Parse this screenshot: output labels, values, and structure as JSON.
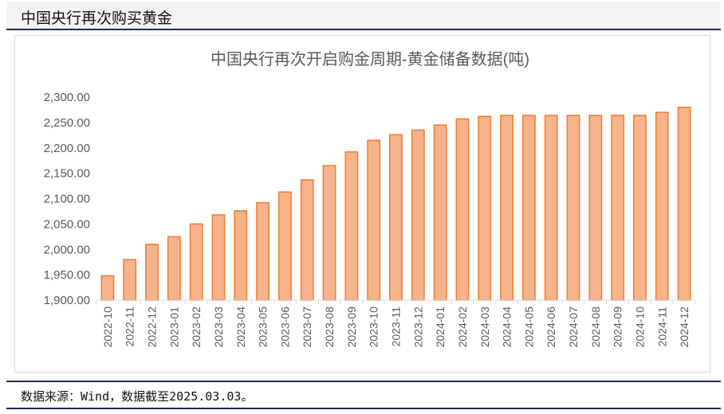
{
  "header": {
    "title": "中国央行再次购买黄金"
  },
  "footer": {
    "source": "数据来源：Wind，数据截至2025.03.03。"
  },
  "colors": {
    "bar_fill": "#f7b38a",
    "bar_stroke": "#ed7d31",
    "frame": "#1f2a5a"
  },
  "chart_data": {
    "type": "bar",
    "title": "中国央行再次开启购金周期-黄金储备数据(吨)",
    "xlabel": "",
    "ylabel": "",
    "ylim": [
      1900,
      2300
    ],
    "yticks": [
      "1,900.00",
      "1,950.00",
      "2,000.00",
      "2,050.00",
      "2,100.00",
      "2,150.00",
      "2,200.00",
      "2,250.00",
      "2,300.00"
    ],
    "grid": false,
    "categories": [
      "2022-10",
      "2022-11",
      "2022-12",
      "2023-01",
      "2023-02",
      "2023-03",
      "2023-04",
      "2023-05",
      "2023-06",
      "2023-07",
      "2023-08",
      "2023-09",
      "2023-10",
      "2023-11",
      "2023-12",
      "2024-01",
      "2024-02",
      "2024-03",
      "2024-04",
      "2024-05",
      "2024-06",
      "2024-07",
      "2024-08",
      "2024-09",
      "2024-10",
      "2024-11",
      "2024-12"
    ],
    "values": [
      1948,
      1980,
      2010,
      2025,
      2050,
      2068,
      2076,
      2092,
      2113,
      2137,
      2165,
      2192,
      2215,
      2226,
      2235,
      2245,
      2257,
      2262,
      2264,
      2264,
      2264,
      2264,
      2264,
      2264,
      2264,
      2270,
      2280
    ]
  }
}
